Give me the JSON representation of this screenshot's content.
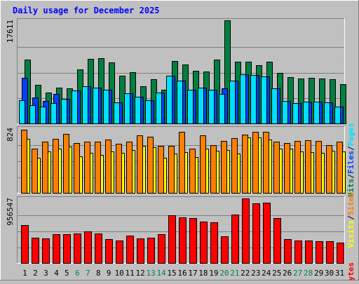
{
  "chart_data": {
    "type": "bar",
    "title": "Daily usage for December 2025",
    "categories": [
      "1",
      "2",
      "3",
      "4",
      "5",
      "6",
      "7",
      "8",
      "9",
      "10",
      "11",
      "12",
      "13",
      "14",
      "15",
      "16",
      "17",
      "18",
      "19",
      "20",
      "21",
      "22",
      "23",
      "24",
      "25",
      "26",
      "27",
      "28",
      "29",
      "30",
      "31"
    ],
    "weekend_days": [
      "6",
      "7",
      "13",
      "14",
      "20",
      "21",
      "27",
      "28"
    ],
    "panels": [
      {
        "id": "traffic",
        "max_label": "17611",
        "ymax": 17611,
        "series": [
          {
            "name": "Hits",
            "color": "#008040",
            "values": [
              10900,
              6600,
              5300,
              6100,
              6000,
              9200,
              11000,
              11100,
              10400,
              8100,
              8700,
              6300,
              7600,
              5800,
              10700,
              10100,
              9000,
              8900,
              10900,
              17611,
              10500,
              10600,
              10000,
              10600,
              8600,
              7900,
              7700,
              7800,
              7700,
              7600,
              6700
            ]
          },
          {
            "name": "Files",
            "color": "#0040ff",
            "values": [
              7800,
              4400,
              3800,
              5000,
              4200,
              5600,
              6300,
              6100,
              5700,
              3600,
              5200,
              4500,
              3900,
              5300,
              8100,
              7300,
              5800,
              6100,
              5800,
              6000,
              7300,
              8400,
              8300,
              8000,
              6000,
              3800,
              3500,
              3700,
              3700,
              3600,
              2900
            ]
          },
          {
            "name": "Pages",
            "color": "#00e0ff",
            "values": [
              4000,
              3100,
              2900,
              3500,
              4200,
              5600,
              6300,
              6100,
              5800,
              3600,
              5200,
              4500,
              3900,
              5300,
              8100,
              7300,
              5800,
              6100,
              5800,
              5000,
              7300,
              8400,
              8300,
              8000,
              6000,
              3800,
              3500,
              3700,
              3700,
              3600,
              2900
            ]
          }
        ],
        "labels": [
          "Pages",
          "Files",
          "Hits"
        ]
      },
      {
        "id": "visits",
        "max_label": "824",
        "ymax": 824,
        "series": [
          {
            "name": "Visits",
            "color": "#ffff00",
            "values": [
              690,
              450,
              530,
              560,
              590,
              470,
              510,
              480,
              530,
              510,
              550,
              600,
              580,
              450,
              500,
              520,
              460,
              560,
              540,
              550,
              500,
              710,
              710,
              680,
              560,
              560,
              530,
              520,
              510,
              540,
              530
            ]
          },
          {
            "name": "Sites",
            "color": "#ff8000",
            "values": [
              810,
              560,
              650,
              690,
              750,
              640,
              650,
              650,
              680,
              630,
              650,
              730,
              720,
              600,
              600,
              780,
              560,
              730,
              610,
              660,
              700,
              740,
              780,
              780,
              650,
              640,
              660,
              670,
              660,
              610,
              650
            ]
          }
        ],
        "labels": [
          "Sites",
          "Visits"
        ]
      },
      {
        "id": "kbytes",
        "max_label": "956547",
        "ymax": 956547,
        "series": [
          {
            "name": "KBytes",
            "color": "#ff0000",
            "values": [
              560000,
              370000,
              360000,
              430000,
              430000,
              440000,
              470000,
              440000,
              350000,
              330000,
              410000,
              360000,
              370000,
              430000,
              710000,
              680000,
              670000,
              610000,
              600000,
              400000,
              720000,
              956547,
              880000,
              890000,
              670000,
              350000,
              330000,
              330000,
              320000,
              320000,
              300000
            ]
          }
        ],
        "labels": [
          "KBytes"
        ]
      }
    ]
  }
}
